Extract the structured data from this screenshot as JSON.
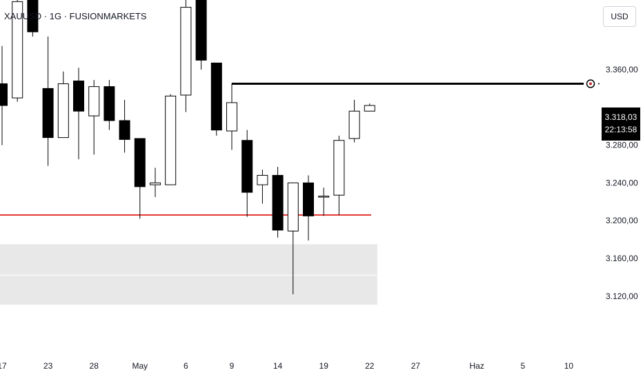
{
  "header": {
    "title": "XAUUSD · 1G · FUSIONMARKETS"
  },
  "currency_button": {
    "label": "USD"
  },
  "price_tag": {
    "price": "3.318,03",
    "countdown": "22:13:58"
  },
  "colors": {
    "down_candle": "#000000",
    "up_candle_fill": "#ffffff",
    "support_line": "#e53935",
    "resistance_line": "#000000",
    "demand_zone": "#e8e8e8"
  },
  "chart_data": {
    "type": "candlestick",
    "symbol": "XAUUSD",
    "timeframe": "1G",
    "broker": "FUSIONMARKETS",
    "currency": "USD",
    "last_price": 3318.03,
    "countdown": "22:13:58",
    "ylim": [
      3100,
      3440
    ],
    "y_ticks": [
      {
        "value": 3360,
        "label": "3.360,00"
      },
      {
        "value": 3280,
        "label": "3.280,00"
      },
      {
        "value": 3240,
        "label": "3.240,00"
      },
      {
        "value": 3200,
        "label": "3.200,00"
      },
      {
        "value": 3160,
        "label": "3.160,00"
      },
      {
        "value": 3120,
        "label": "3.120,00"
      }
    ],
    "x_ticks": [
      {
        "i": 0,
        "label": "17"
      },
      {
        "i": 3,
        "label": "23"
      },
      {
        "i": 6,
        "label": "28"
      },
      {
        "i": 9,
        "label": "May"
      },
      {
        "i": 12,
        "label": "6"
      },
      {
        "i": 15,
        "label": "9"
      },
      {
        "i": 18,
        "label": "14"
      },
      {
        "i": 21,
        "label": "19"
      },
      {
        "i": 24,
        "label": "22"
      },
      {
        "i": 27,
        "label": "27"
      },
      {
        "i": 31,
        "label": "Haz"
      },
      {
        "i": 34,
        "label": "5"
      },
      {
        "i": 37,
        "label": "10"
      }
    ],
    "candles": [
      {
        "o": 3345,
        "h": 3385,
        "l": 3280,
        "c": 3322
      },
      {
        "o": 3330,
        "h": 3445,
        "l": 3326,
        "c": 3432
      },
      {
        "o": 3440,
        "h": 3445,
        "l": 3395,
        "c": 3400
      },
      {
        "o": 3340,
        "h": 3395,
        "l": 3258,
        "c": 3288
      },
      {
        "o": 3288,
        "h": 3358,
        "l": 3288,
        "c": 3345
      },
      {
        "o": 3348,
        "h": 3362,
        "l": 3265,
        "c": 3316
      },
      {
        "o": 3311,
        "h": 3349,
        "l": 3270,
        "c": 3342
      },
      {
        "o": 3342,
        "h": 3349,
        "l": 3296,
        "c": 3306
      },
      {
        "o": 3306,
        "h": 3328,
        "l": 3272,
        "c": 3286
      },
      {
        "o": 3287,
        "h": 3287,
        "l": 3202,
        "c": 3236
      },
      {
        "o": 3238,
        "h": 3256,
        "l": 3225,
        "c": 3240
      },
      {
        "o": 3238,
        "h": 3334,
        "l": 3238,
        "c": 3332
      },
      {
        "o": 3333,
        "h": 3440,
        "l": 3315,
        "c": 3426
      },
      {
        "o": 3440,
        "h": 3445,
        "l": 3360,
        "c": 3370
      },
      {
        "o": 3367,
        "h": 3366,
        "l": 3290,
        "c": 3296
      },
      {
        "o": 3295,
        "h": 3345,
        "l": 3275,
        "c": 3325
      },
      {
        "o": 3285,
        "h": 3296,
        "l": 3204,
        "c": 3230
      },
      {
        "o": 3238,
        "h": 3254,
        "l": 3218,
        "c": 3248
      },
      {
        "o": 3248,
        "h": 3257,
        "l": 3182,
        "c": 3190
      },
      {
        "o": 3189,
        "h": 3240,
        "l": 3122,
        "c": 3240
      },
      {
        "o": 3240,
        "h": 3248,
        "l": 3179,
        "c": 3205
      },
      {
        "o": 3226,
        "h": 3235,
        "l": 3205,
        "c": 3226
      },
      {
        "o": 3227,
        "h": 3290,
        "l": 3206,
        "c": 3285
      },
      {
        "o": 3287,
        "h": 3328,
        "l": 3283,
        "c": 3316
      },
      {
        "o": 3316,
        "h": 3324,
        "l": 3316,
        "c": 3322
      }
    ],
    "annotations": [
      {
        "type": "horizontal_line",
        "price": 3345,
        "from_i": 15,
        "color": "#000000",
        "label": ""
      },
      {
        "type": "horizontal_line",
        "price": 3206,
        "from_i": -1,
        "color": "#e53935",
        "label": ""
      },
      {
        "type": "zone",
        "price_top": 3175,
        "price_bottom": 3111,
        "from_i": -1,
        "to_i": 24.5,
        "color": "#e8e8e8"
      }
    ]
  }
}
